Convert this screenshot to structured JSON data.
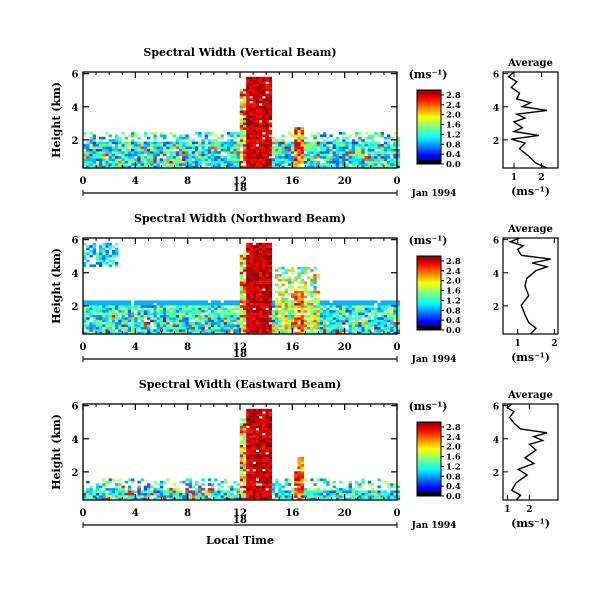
{
  "chart_data": [
    {
      "type": "heatmap",
      "title": "Spectral Width (Vertical Beam)",
      "ylabel": "Height (km)",
      "xlabel": "",
      "x_ticks": [
        "0",
        "4",
        "8",
        "12",
        "16",
        "20",
        "0"
      ],
      "y_ticks": [
        "2",
        "4",
        "6"
      ],
      "xlim": [
        0,
        24
      ],
      "ylim": [
        0.3,
        6.1
      ],
      "date_label": "18",
      "month_label": "Jan 1994",
      "colorbar": {
        "unit": "(ms⁻¹)",
        "ticks": [
          "0.0",
          "0.4",
          "0.8",
          "1.2",
          "1.6",
          "2.0",
          "2.4",
          "2.8"
        ],
        "range": [
          0,
          3.0
        ]
      },
      "average": {
        "title": "Average",
        "xlabel": "(ms⁻¹)",
        "x_ticks": [
          "1",
          "2"
        ],
        "y_ticks": [
          "2",
          "4",
          "6"
        ],
        "xlim": [
          0.6,
          2.6
        ]
      }
    },
    {
      "type": "heatmap",
      "title": "Spectral Width (Northward Beam)",
      "ylabel": "Height (km)",
      "xlabel": "",
      "x_ticks": [
        "0",
        "4",
        "8",
        "12",
        "16",
        "20",
        "0"
      ],
      "y_ticks": [
        "2",
        "4",
        "6"
      ],
      "xlim": [
        0,
        24
      ],
      "ylim": [
        0.3,
        6.1
      ],
      "date_label": "18",
      "month_label": "Jan 1994",
      "colorbar": {
        "unit": "(ms⁻¹)",
        "ticks": [
          "0.0",
          "0.4",
          "0.8",
          "1.2",
          "1.6",
          "2.0",
          "2.4",
          "2.8"
        ],
        "range": [
          0,
          3.0
        ]
      },
      "average": {
        "title": "Average",
        "xlabel": "(ms⁻¹)",
        "x_ticks": [
          "1",
          "2"
        ],
        "y_ticks": [
          "2",
          "4",
          "6"
        ],
        "xlim": [
          0.6,
          2.1
        ]
      }
    },
    {
      "type": "heatmap",
      "title": "Spectral Width (Eastward Beam)",
      "ylabel": "Height (km)",
      "xlabel": "Local Time",
      "x_ticks": [
        "0",
        "4",
        "8",
        "12",
        "16",
        "20",
        "0"
      ],
      "y_ticks": [
        "2",
        "4",
        "6"
      ],
      "xlim": [
        0,
        24
      ],
      "ylim": [
        0.3,
        6.1
      ],
      "date_label": "18",
      "month_label": "Jan 1994",
      "colorbar": {
        "unit": "(ms⁻¹)",
        "ticks": [
          "0.0",
          "0.4",
          "0.8",
          "1.2",
          "1.6",
          "2.0",
          "2.4",
          "2.8"
        ],
        "range": [
          0,
          3.0
        ]
      },
      "average": {
        "title": "Average",
        "xlabel": "(ms⁻¹)",
        "x_ticks": [
          "1",
          "2"
        ],
        "y_ticks": [
          "2",
          "4",
          "6"
        ],
        "xlim": [
          0.8,
          3.3
        ]
      }
    }
  ]
}
